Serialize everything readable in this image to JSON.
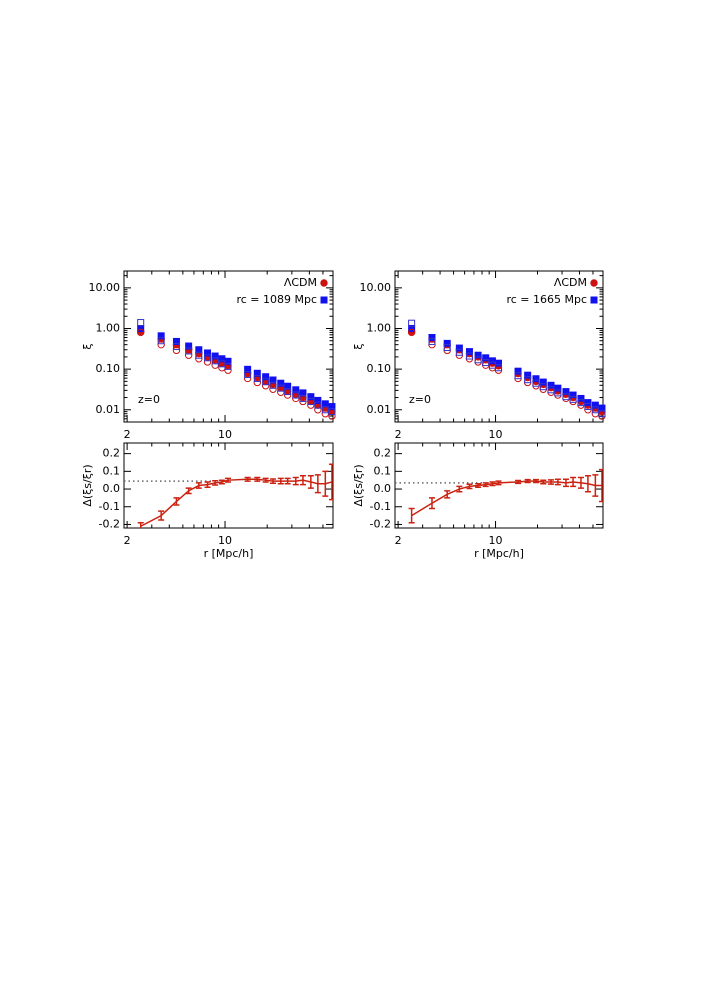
{
  "chart_data": [
    {
      "type": "scatter",
      "xscale": "log",
      "yscale": "log",
      "ylabel": "ξ",
      "annotation": "z=0",
      "legend": "upper right",
      "x": [
        2.5,
        3.5,
        4.5,
        5.5,
        6.5,
        7.5,
        8.5,
        9.5,
        10.5,
        14.5,
        17,
        19.5,
        22,
        25,
        28,
        32,
        36,
        41,
        46,
        52,
        58
      ],
      "xlim": [
        1.9,
        59
      ],
      "xticks": [
        2,
        10
      ],
      "xminor": [
        3,
        4,
        5,
        6,
        7,
        8,
        9,
        20,
        30,
        40,
        50
      ],
      "ylim": [
        0.005,
        26
      ],
      "yticks": [
        {
          "value": 10,
          "label": "10.00"
        },
        {
          "value": 1,
          "label": "1.00"
        },
        {
          "value": 0.1,
          "label": "0.10"
        },
        {
          "value": 0.01,
          "label": "0.01"
        }
      ],
      "series": [
        {
          "name": "ΛCDM",
          "marker": "circle",
          "filled": true,
          "color": "#cc1111",
          "values": [
            0.85,
            0.55,
            0.4,
            0.3,
            0.24,
            0.2,
            0.17,
            0.14,
            0.12,
            0.078,
            0.062,
            0.05,
            0.042,
            0.035,
            0.029,
            0.024,
            0.02,
            0.016,
            0.013,
            0.011,
            0.009
          ]
        },
        {
          "name": "rc = 1089 Mpc",
          "marker": "square",
          "filled": true,
          "color": "#1111ee",
          "values": [
            1.0,
            0.66,
            0.48,
            0.37,
            0.3,
            0.25,
            0.21,
            0.18,
            0.156,
            0.099,
            0.079,
            0.065,
            0.054,
            0.045,
            0.038,
            0.031,
            0.026,
            0.021,
            0.017,
            0.014,
            0.012
          ]
        },
        {
          "marker": "circle",
          "filled": false,
          "color": "#cc1111",
          "values": [
            0.8,
            0.4,
            0.29,
            0.22,
            0.18,
            0.15,
            0.125,
            0.108,
            0.094,
            0.059,
            0.047,
            0.039,
            0.032,
            0.027,
            0.023,
            0.019,
            0.016,
            0.013,
            0.01,
            0.008,
            0.007
          ]
        },
        {
          "marker": "square",
          "filled": false,
          "color": "#3333cc",
          "values": [
            1.4,
            0.5,
            0.36,
            0.28,
            0.22,
            0.19,
            0.16,
            0.135,
            0.117,
            0.074,
            0.059,
            0.049,
            0.04,
            0.034,
            0.028,
            0.023,
            0.019,
            0.016,
            0.013,
            0.01,
            0.009
          ]
        }
      ]
    },
    {
      "type": "line",
      "xscale": "log",
      "ylabel": "Δ(ξs/ξr)",
      "xlabel": "r [Mpc/h]",
      "color": "#cc2211",
      "x": [
        2.5,
        3.5,
        4.5,
        5.5,
        6.5,
        7.5,
        8.5,
        9.5,
        10.5,
        14.5,
        17,
        19.5,
        22,
        25,
        28,
        32,
        36,
        41,
        46,
        52,
        58
      ],
      "xlim": [
        1.9,
        59
      ],
      "xticks": [
        2,
        10
      ],
      "xminor": [
        3,
        4,
        5,
        6,
        7,
        8,
        9,
        20,
        30,
        40,
        50
      ],
      "ylim": [
        -0.22,
        0.26
      ],
      "yticks": [
        0.2,
        0.1,
        {
          "value": 0,
          "label": "0.0"
        },
        -0.1,
        -0.2
      ],
      "hline": 0.045,
      "hline_xlim": [
        1.9,
        8.2
      ],
      "values": [
        -0.21,
        -0.15,
        -0.07,
        -0.01,
        0.02,
        0.025,
        0.035,
        0.04,
        0.05,
        0.055,
        0.055,
        0.05,
        0.045,
        0.045,
        0.045,
        0.045,
        0.05,
        0.04,
        0.03,
        0.03,
        0.04
      ],
      "errors": [
        0.02,
        0.025,
        0.02,
        0.015,
        0.015,
        0.015,
        0.012,
        0.01,
        0.01,
        0.01,
        0.01,
        0.01,
        0.012,
        0.015,
        0.015,
        0.02,
        0.025,
        0.035,
        0.05,
        0.07,
        0.1
      ]
    },
    {
      "type": "scatter",
      "xscale": "log",
      "yscale": "log",
      "ylabel": "ξ",
      "annotation": "z=0",
      "legend": "upper right",
      "x": [
        2.5,
        3.5,
        4.5,
        5.5,
        6.5,
        7.5,
        8.5,
        9.5,
        10.5,
        14.5,
        17,
        19.5,
        22,
        25,
        28,
        32,
        36,
        41,
        46,
        52,
        58
      ],
      "xlim": [
        1.9,
        59
      ],
      "xticks": [
        2,
        10
      ],
      "xminor": [
        3,
        4,
        5,
        6,
        7,
        8,
        9,
        20,
        30,
        40,
        50
      ],
      "ylim": [
        0.005,
        26
      ],
      "yticks": [
        {
          "value": 10,
          "label": "10.00"
        },
        {
          "value": 1,
          "label": "1.00"
        },
        {
          "value": 0.1,
          "label": "0.10"
        },
        {
          "value": 0.01,
          "label": "0.01"
        }
      ],
      "series": [
        {
          "name": "ΛCDM",
          "marker": "circle",
          "filled": true,
          "color": "#cc1111",
          "values": [
            0.85,
            0.55,
            0.4,
            0.3,
            0.24,
            0.2,
            0.17,
            0.14,
            0.12,
            0.078,
            0.062,
            0.05,
            0.042,
            0.035,
            0.029,
            0.024,
            0.02,
            0.016,
            0.013,
            0.011,
            0.009
          ]
        },
        {
          "name": "rc = 1665 Mpc",
          "marker": "square",
          "filled": true,
          "color": "#1111ee",
          "values": [
            1.0,
            0.6,
            0.43,
            0.33,
            0.27,
            0.22,
            0.19,
            0.16,
            0.14,
            0.089,
            0.071,
            0.058,
            0.048,
            0.04,
            0.034,
            0.028,
            0.023,
            0.019,
            0.015,
            0.013,
            0.011
          ]
        },
        {
          "marker": "circle",
          "filled": false,
          "color": "#cc1111",
          "values": [
            0.8,
            0.4,
            0.29,
            0.22,
            0.18,
            0.15,
            0.125,
            0.108,
            0.094,
            0.059,
            0.047,
            0.039,
            0.032,
            0.027,
            0.023,
            0.019,
            0.016,
            0.013,
            0.01,
            0.008,
            0.007
          ]
        },
        {
          "marker": "square",
          "filled": false,
          "color": "#3333cc",
          "values": [
            1.35,
            0.48,
            0.34,
            0.26,
            0.21,
            0.17,
            0.145,
            0.125,
            0.108,
            0.069,
            0.055,
            0.045,
            0.037,
            0.031,
            0.026,
            0.021,
            0.018,
            0.015,
            0.012,
            0.01,
            0.008
          ]
        }
      ]
    },
    {
      "type": "line",
      "xscale": "log",
      "ylabel": "Δ(ξs/ξr)",
      "xlabel": "r [Mpc/h]",
      "color": "#cc2211",
      "x": [
        2.5,
        3.5,
        4.5,
        5.5,
        6.5,
        7.5,
        8.5,
        9.5,
        10.5,
        14.5,
        17,
        19.5,
        22,
        25,
        28,
        32,
        36,
        41,
        46,
        52,
        58
      ],
      "xlim": [
        1.9,
        59
      ],
      "xticks": [
        2,
        10
      ],
      "xminor": [
        3,
        4,
        5,
        6,
        7,
        8,
        9,
        20,
        30,
        40,
        50
      ],
      "ylim": [
        -0.22,
        0.26
      ],
      "yticks": [
        0.2,
        0.1,
        {
          "value": 0,
          "label": "0.0"
        },
        -0.1,
        -0.2
      ],
      "hline": 0.035,
      "hline_xlim": [
        1.9,
        8.2
      ],
      "values": [
        -0.15,
        -0.08,
        -0.03,
        0.0,
        0.015,
        0.02,
        0.025,
        0.03,
        0.035,
        0.04,
        0.045,
        0.045,
        0.04,
        0.04,
        0.04,
        0.035,
        0.04,
        0.035,
        0.03,
        0.02,
        0.02
      ],
      "errors": [
        0.04,
        0.03,
        0.02,
        0.015,
        0.012,
        0.01,
        0.01,
        0.01,
        0.01,
        0.008,
        0.008,
        0.008,
        0.01,
        0.012,
        0.015,
        0.02,
        0.025,
        0.03,
        0.045,
        0.06,
        0.09
      ]
    }
  ]
}
